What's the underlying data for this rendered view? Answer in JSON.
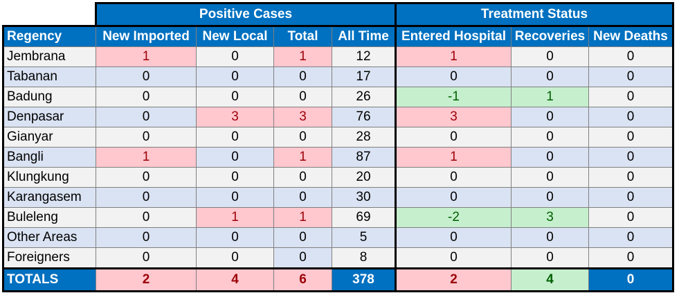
{
  "groups": {
    "positive": "Positive Cases",
    "treatment": "Treatment Status"
  },
  "headers": [
    "Regency",
    "New Imported",
    "New Local",
    "Total",
    "All Time",
    "Entered Hospital",
    "Recoveries",
    "New Deaths"
  ],
  "rows": [
    {
      "name": "Jembrana",
      "values": [
        "1",
        "0",
        "1",
        "12",
        "1",
        "0",
        "0"
      ],
      "status": [
        "red",
        "",
        "red",
        "",
        "red",
        "",
        ""
      ]
    },
    {
      "name": "Tabanan",
      "values": [
        "0",
        "0",
        "0",
        "17",
        "0",
        "0",
        "0"
      ],
      "status": [
        "",
        "",
        "",
        "",
        "",
        "",
        ""
      ]
    },
    {
      "name": "Badung",
      "values": [
        "0",
        "0",
        "0",
        "26",
        "-1",
        "1",
        "0"
      ],
      "status": [
        "",
        "",
        "",
        "",
        "green",
        "green",
        ""
      ]
    },
    {
      "name": "Denpasar",
      "values": [
        "0",
        "3",
        "3",
        "76",
        "3",
        "0",
        "0"
      ],
      "status": [
        "",
        "red",
        "red",
        "",
        "red",
        "",
        ""
      ]
    },
    {
      "name": "Gianyar",
      "values": [
        "0",
        "0",
        "0",
        "28",
        "0",
        "0",
        "0"
      ],
      "status": [
        "",
        "",
        "",
        "",
        "",
        "",
        ""
      ]
    },
    {
      "name": "Bangli",
      "values": [
        "1",
        "0",
        "1",
        "87",
        "1",
        "0",
        "0"
      ],
      "status": [
        "red",
        "",
        "red",
        "",
        "red",
        "",
        ""
      ]
    },
    {
      "name": "Klungkung",
      "values": [
        "0",
        "0",
        "0",
        "20",
        "0",
        "0",
        "0"
      ],
      "status": [
        "",
        "",
        "",
        "",
        "",
        "",
        ""
      ]
    },
    {
      "name": "Karangasem",
      "values": [
        "0",
        "0",
        "0",
        "30",
        "0",
        "0",
        "0"
      ],
      "status": [
        "",
        "",
        "",
        "",
        "",
        "",
        ""
      ]
    },
    {
      "name": "Buleleng",
      "values": [
        "0",
        "1",
        "1",
        "69",
        "-2",
        "3",
        "0"
      ],
      "status": [
        "",
        "red",
        "red",
        "",
        "green",
        "green",
        ""
      ]
    },
    {
      "name": "Other Areas",
      "values": [
        "0",
        "0",
        "0",
        "5",
        "0",
        "0",
        "0"
      ],
      "status": [
        "",
        "",
        "",
        "",
        "",
        "",
        ""
      ]
    },
    {
      "name": "Foreigners",
      "values": [
        "0",
        "0",
        "0",
        "8",
        "0",
        "0",
        "0"
      ],
      "status": [
        "",
        "",
        "even",
        "",
        "",
        "",
        ""
      ]
    }
  ],
  "totals": {
    "label": "TOTALS",
    "values": [
      "2",
      "4",
      "6",
      "378",
      "2",
      "4",
      "0"
    ],
    "status": [
      "red",
      "red",
      "red",
      "blue",
      "red",
      "green",
      "blue"
    ]
  },
  "colors": {
    "header_blue": "#0070c0",
    "positive_fill": "#ffc7ce",
    "positive_text": "#9c0006",
    "negative_fill": "#c6efce",
    "negative_text": "#006100",
    "row_odd": "#f2f2f2",
    "row_even": "#dae3f3"
  }
}
